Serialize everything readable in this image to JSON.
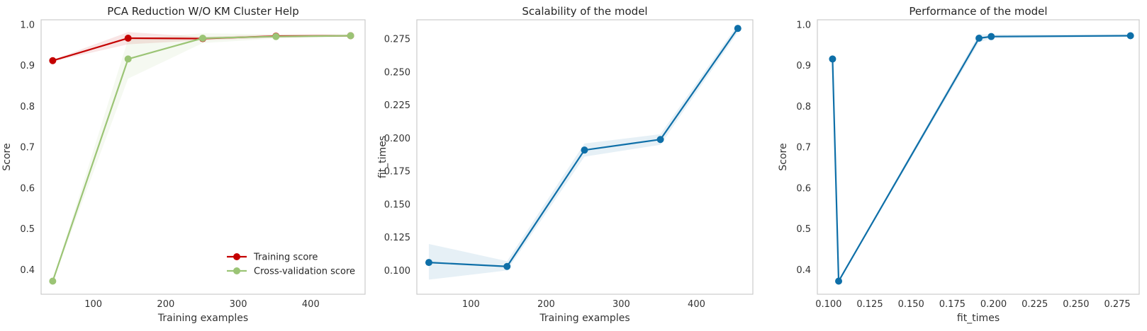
{
  "chart_data": [
    {
      "type": "line",
      "title": "PCA Reduction W/O KM Cluster Help",
      "xlabel": "Training examples",
      "ylabel": "Score",
      "xlim": [
        28,
        475
      ],
      "ylim": [
        0.34,
        1.012
      ],
      "xticks": [
        100,
        200,
        300,
        400
      ],
      "yticks": [
        0.4,
        0.5,
        0.6,
        0.7,
        0.8,
        0.9,
        1.0
      ],
      "ytick_labels": [
        "0.4",
        "0.5",
        "0.6",
        "0.7",
        "0.8",
        "0.9",
        "1.0"
      ],
      "grid": false,
      "legend": {
        "placement": "lower-right",
        "entries": [
          "Training score",
          "Cross-validation score"
        ]
      },
      "x": [
        44,
        148,
        251,
        352,
        455
      ],
      "series": [
        {
          "name": "Training score",
          "color": "#c40000",
          "values": [
            0.912,
            0.967,
            0.966,
            0.972,
            0.973
          ],
          "band_lower": [
            0.91,
            0.952,
            0.962,
            0.968,
            0.971
          ],
          "band_upper": [
            0.914,
            0.982,
            0.97,
            0.976,
            0.975
          ]
        },
        {
          "name": "Cross-validation score",
          "color": "#9bc475",
          "values": [
            0.372,
            0.916,
            0.967,
            0.971,
            0.973
          ],
          "band_lower": [
            0.37,
            0.868,
            0.955,
            0.966,
            0.97
          ],
          "band_upper": [
            0.374,
            0.964,
            0.979,
            0.976,
            0.976
          ]
        }
      ]
    },
    {
      "type": "line",
      "title": "Scalability of the model",
      "xlabel": "Training examples",
      "ylabel": "fit_times",
      "xlim": [
        28,
        475
      ],
      "ylim": [
        0.082,
        0.2895
      ],
      "xticks": [
        100,
        200,
        300,
        400
      ],
      "yticks": [
        0.1,
        0.125,
        0.15,
        0.175,
        0.2,
        0.225,
        0.25,
        0.275
      ],
      "ytick_labels": [
        "0.100",
        "0.125",
        "0.150",
        "0.175",
        "0.200",
        "0.225",
        "0.250",
        "0.275"
      ],
      "grid": false,
      "x": [
        44,
        148,
        251,
        352,
        455
      ],
      "series": [
        {
          "color": "#0e6fa8",
          "values": [
            0.106,
            0.103,
            0.191,
            0.199,
            0.283
          ],
          "band_lower": [
            0.093,
            0.1,
            0.186,
            0.195,
            0.28
          ],
          "band_upper": [
            0.12,
            0.107,
            0.196,
            0.203,
            0.286
          ]
        }
      ]
    },
    {
      "type": "line",
      "title": "Performance of the model",
      "xlabel": "fit_times",
      "ylabel": "Score",
      "xlim": [
        0.0932,
        0.2883
      ],
      "ylim": [
        0.34,
        1.012
      ],
      "xticks": [
        0.1,
        0.125,
        0.15,
        0.175,
        0.2,
        0.225,
        0.25,
        0.275
      ],
      "xtick_labels": [
        "0.100",
        "0.125",
        "0.150",
        "0.175",
        "0.200",
        "0.225",
        "0.250",
        "0.275"
      ],
      "yticks": [
        0.4,
        0.5,
        0.6,
        0.7,
        0.8,
        0.9,
        1.0
      ],
      "ytick_labels": [
        "0.4",
        "0.5",
        "0.6",
        "0.7",
        "0.8",
        "0.9",
        "1.0"
      ],
      "grid": false,
      "series": [
        {
          "color": "#0e6fa8",
          "x": [
            0.1024,
            0.1061,
            0.1912,
            0.1986,
            0.283
          ],
          "values": [
            0.916,
            0.372,
            0.967,
            0.971,
            0.973
          ],
          "band_lower": [
            0.914,
            0.37,
            0.957,
            0.966,
            0.97
          ],
          "band_upper": [
            0.918,
            0.374,
            0.977,
            0.976,
            0.976
          ]
        }
      ]
    }
  ]
}
